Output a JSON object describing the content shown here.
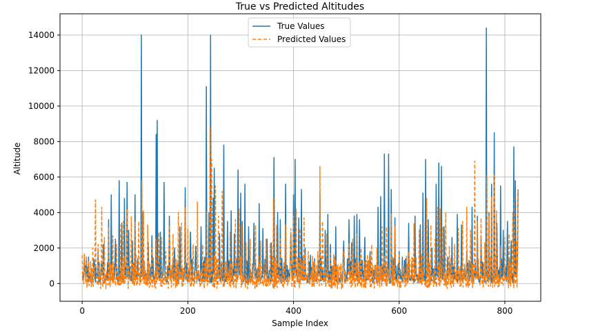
{
  "chart_data": {
    "type": "line",
    "title": "True vs Predicted Altitudes",
    "xlabel": "Sample Index",
    "ylabel": "Altitude",
    "xlim": [
      -42,
      868
    ],
    "ylim": [
      -1000,
      15200
    ],
    "x_ticks": [
      0,
      200,
      400,
      600,
      800
    ],
    "y_ticks": [
      0,
      2000,
      4000,
      6000,
      8000,
      10000,
      12000,
      14000
    ],
    "grid": true,
    "legend_position": "top-center",
    "series": [
      {
        "name": "True Values",
        "color": "#1f77b4",
        "style": "solid",
        "peaks": [
          [
            0,
            300
          ],
          [
            5,
            700
          ],
          [
            10,
            900
          ],
          [
            20,
            400
          ],
          [
            30,
            1800
          ],
          [
            40,
            2200
          ],
          [
            50,
            3600
          ],
          [
            55,
            5000
          ],
          [
            63,
            2500
          ],
          [
            70,
            5800
          ],
          [
            75,
            3400
          ],
          [
            80,
            4800
          ],
          [
            85,
            5700
          ],
          [
            88,
            3000
          ],
          [
            95,
            2400
          ],
          [
            100,
            5000
          ],
          [
            105,
            1400
          ],
          [
            112,
            14000
          ],
          [
            115,
            4000
          ],
          [
            125,
            2300
          ],
          [
            132,
            2700
          ],
          [
            140,
            8400
          ],
          [
            142,
            9200
          ],
          [
            148,
            2900
          ],
          [
            155,
            5700
          ],
          [
            165,
            3800
          ],
          [
            175,
            2000
          ],
          [
            185,
            3200
          ],
          [
            195,
            5400
          ],
          [
            205,
            2900
          ],
          [
            215,
            2100
          ],
          [
            225,
            3200
          ],
          [
            235,
            11100
          ],
          [
            240,
            4000
          ],
          [
            243,
            14000
          ],
          [
            248,
            4800
          ],
          [
            250,
            6500
          ],
          [
            260,
            2800
          ],
          [
            268,
            7800
          ],
          [
            275,
            3500
          ],
          [
            282,
            4100
          ],
          [
            288,
            2800
          ],
          [
            295,
            6400
          ],
          [
            300,
            5100
          ],
          [
            303,
            3500
          ],
          [
            308,
            5600
          ],
          [
            315,
            3200
          ],
          [
            325,
            3400
          ],
          [
            335,
            4500
          ],
          [
            342,
            3100
          ],
          [
            350,
            2500
          ],
          [
            358,
            2300
          ],
          [
            363,
            7100
          ],
          [
            370,
            4000
          ],
          [
            375,
            3600
          ],
          [
            385,
            5600
          ],
          [
            395,
            2800
          ],
          [
            400,
            5000
          ],
          [
            403,
            7000
          ],
          [
            410,
            3700
          ],
          [
            415,
            5300
          ],
          [
            422,
            2000
          ],
          [
            432,
            1600
          ],
          [
            440,
            1400
          ],
          [
            450,
            5200
          ],
          [
            460,
            3000
          ],
          [
            465,
            3900
          ],
          [
            470,
            2200
          ],
          [
            480,
            3200
          ],
          [
            490,
            600
          ],
          [
            495,
            2400
          ],
          [
            505,
            3600
          ],
          [
            510,
            2300
          ],
          [
            515,
            3800
          ],
          [
            520,
            3900
          ],
          [
            525,
            3600
          ],
          [
            535,
            2600
          ],
          [
            545,
            1800
          ],
          [
            560,
            4300
          ],
          [
            565,
            4900
          ],
          [
            572,
            7300
          ],
          [
            580,
            7300
          ],
          [
            585,
            5300
          ],
          [
            592,
            3700
          ],
          [
            600,
            1800
          ],
          [
            610,
            1300
          ],
          [
            618,
            3400
          ],
          [
            630,
            3800
          ],
          [
            640,
            3300
          ],
          [
            645,
            5100
          ],
          [
            650,
            7000
          ],
          [
            655,
            3600
          ],
          [
            662,
            2000
          ],
          [
            670,
            5600
          ],
          [
            675,
            6800
          ],
          [
            680,
            6600
          ],
          [
            685,
            3200
          ],
          [
            692,
            1500
          ],
          [
            700,
            2600
          ],
          [
            710,
            3900
          ],
          [
            718,
            3300
          ],
          [
            728,
            1800
          ],
          [
            738,
            4300
          ],
          [
            748,
            3800
          ],
          [
            755,
            2600
          ],
          [
            765,
            14400
          ],
          [
            770,
            4000
          ],
          [
            775,
            5600
          ],
          [
            780,
            8500
          ],
          [
            785,
            3400
          ],
          [
            792,
            5500
          ],
          [
            797,
            3000
          ],
          [
            805,
            3500
          ],
          [
            812,
            2400
          ],
          [
            817,
            7700
          ],
          [
            820,
            5800
          ],
          [
            825,
            5300
          ]
        ]
      },
      {
        "name": "Predicted Values",
        "color": "#ff7f0e",
        "style": "dashed",
        "peaks": [
          [
            0,
            1600
          ],
          [
            5,
            900
          ],
          [
            12,
            1300
          ],
          [
            20,
            2000
          ],
          [
            25,
            4700
          ],
          [
            30,
            2200
          ],
          [
            37,
            4300
          ],
          [
            42,
            2600
          ],
          [
            50,
            3200
          ],
          [
            58,
            2700
          ],
          [
            65,
            2200
          ],
          [
            72,
            3300
          ],
          [
            78,
            3500
          ],
          [
            85,
            4200
          ],
          [
            93,
            3800
          ],
          [
            100,
            3500
          ],
          [
            107,
            3500
          ],
          [
            113,
            5800
          ],
          [
            116,
            4100
          ],
          [
            124,
            3300
          ],
          [
            132,
            2000
          ],
          [
            140,
            2500
          ],
          [
            145,
            2900
          ],
          [
            150,
            2600
          ],
          [
            158,
            1800
          ],
          [
            165,
            3300
          ],
          [
            172,
            2800
          ],
          [
            182,
            4000
          ],
          [
            188,
            3400
          ],
          [
            195,
            4300
          ],
          [
            200,
            3100
          ],
          [
            210,
            2200
          ],
          [
            218,
            4600
          ],
          [
            228,
            2200
          ],
          [
            236,
            4100
          ],
          [
            242,
            8800
          ],
          [
            245,
            7000
          ],
          [
            252,
            5500
          ],
          [
            258,
            3800
          ],
          [
            265,
            5200
          ],
          [
            272,
            1200
          ],
          [
            280,
            2900
          ],
          [
            290,
            3600
          ],
          [
            297,
            4200
          ],
          [
            302,
            3300
          ],
          [
            310,
            2300
          ],
          [
            318,
            2500
          ],
          [
            328,
            3300
          ],
          [
            338,
            2400
          ],
          [
            348,
            2500
          ],
          [
            356,
            2300
          ],
          [
            362,
            4800
          ],
          [
            368,
            3300
          ],
          [
            375,
            2500
          ],
          [
            385,
            3300
          ],
          [
            395,
            3100
          ],
          [
            400,
            3800
          ],
          [
            405,
            4200
          ],
          [
            412,
            3100
          ],
          [
            420,
            3700
          ],
          [
            428,
            1800
          ],
          [
            438,
            1200
          ],
          [
            446,
            1800
          ],
          [
            450,
            6600
          ],
          [
            455,
            3500
          ],
          [
            463,
            2800
          ],
          [
            470,
            1700
          ],
          [
            478,
            1500
          ],
          [
            487,
            1000
          ],
          [
            495,
            1800
          ],
          [
            505,
            2300
          ],
          [
            512,
            2500
          ],
          [
            520,
            2800
          ],
          [
            528,
            2000
          ],
          [
            538,
            1300
          ],
          [
            548,
            2200
          ],
          [
            558,
            2000
          ],
          [
            568,
            3200
          ],
          [
            576,
            3200
          ],
          [
            585,
            3900
          ],
          [
            592,
            3200
          ],
          [
            600,
            1600
          ],
          [
            609,
            1000
          ],
          [
            618,
            1800
          ],
          [
            628,
            3400
          ],
          [
            638,
            3000
          ],
          [
            646,
            3500
          ],
          [
            652,
            4800
          ],
          [
            660,
            3300
          ],
          [
            668,
            2500
          ],
          [
            673,
            4300
          ],
          [
            678,
            4200
          ],
          [
            683,
            3200
          ],
          [
            688,
            4000
          ],
          [
            695,
            2100
          ],
          [
            705,
            2200
          ],
          [
            712,
            3100
          ],
          [
            720,
            3500
          ],
          [
            728,
            4300
          ],
          [
            735,
            3000
          ],
          [
            743,
            6900
          ],
          [
            748,
            3500
          ],
          [
            755,
            3700
          ],
          [
            762,
            2300
          ],
          [
            766,
            6100
          ],
          [
            770,
            3800
          ],
          [
            775,
            4900
          ],
          [
            780,
            6100
          ],
          [
            784,
            4100
          ],
          [
            792,
            2100
          ],
          [
            800,
            2600
          ],
          [
            808,
            2800
          ],
          [
            815,
            4000
          ],
          [
            818,
            4800
          ],
          [
            822,
            2400
          ],
          [
            825,
            5300
          ]
        ]
      }
    ]
  }
}
